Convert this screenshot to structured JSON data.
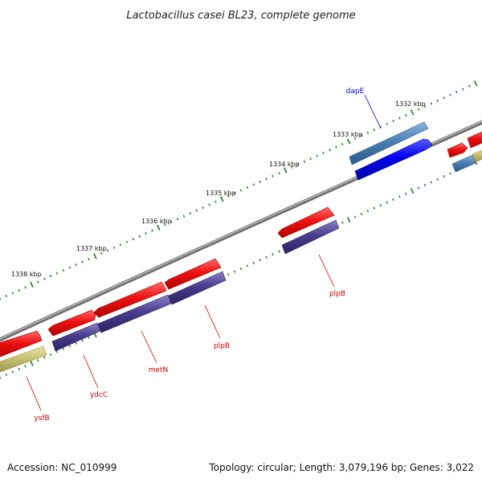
{
  "title": "Lactobacillus casei BL23, complete genome",
  "footer": {
    "accession": "Accession: NC_010999",
    "summary": "Topology: circular; Length: 3,079,196 bp; Genes: 3,022"
  },
  "ticks": [
    {
      "label": "1332 kbp"
    },
    {
      "label": "1333 kbp"
    },
    {
      "label": "1334 kbp"
    },
    {
      "label": "1335 kbp"
    },
    {
      "label": "1336 kbp"
    },
    {
      "label": "1337 kbp"
    },
    {
      "label": "1338 kbp"
    }
  ],
  "genes": [
    {
      "name": "dapE",
      "color": "#0000cc"
    },
    {
      "name": "plpB",
      "color": "#cc0000"
    },
    {
      "name": "plpB",
      "color": "#cc0000"
    },
    {
      "name": "metN",
      "color": "#cc0000"
    },
    {
      "name": "ydcC",
      "color": "#cc0000"
    },
    {
      "name": "ysfB",
      "color": "#cc0000"
    }
  ],
  "colors": {
    "cds": "#ee1111",
    "gene_blue": "#0000ee",
    "gene_steel": "#4a7fb5",
    "gene_purple": "#4a3d8f",
    "gene_olive": "#c8c070",
    "backbone": "#888888",
    "tick": "#2a8a2a"
  }
}
